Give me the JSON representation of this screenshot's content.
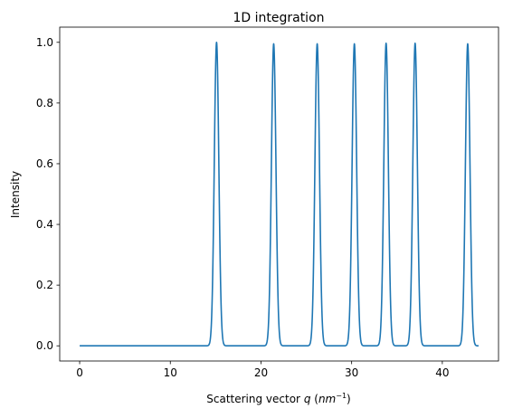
{
  "chart_data": {
    "type": "line",
    "title": "1D integration",
    "xlabel_prefix": "Scattering vector ",
    "xlabel_var": "q",
    "xlabel_unit_open": " (",
    "xlabel_unit_base": "nm",
    "xlabel_unit_exp": "−1",
    "xlabel_unit_close": ")",
    "ylabel": "Intensity",
    "xlim": [
      -2.2,
      46.2
    ],
    "ylim": [
      -0.05,
      1.05
    ],
    "xticks": [
      0,
      10,
      20,
      30,
      40
    ],
    "xtick_labels": [
      "0",
      "10",
      "20",
      "30",
      "40"
    ],
    "yticks": [
      0.0,
      0.2,
      0.4,
      0.6,
      0.8,
      1.0
    ],
    "ytick_labels": [
      "0.0",
      "0.2",
      "0.4",
      "0.6",
      "0.8",
      "1.0"
    ],
    "grid": false,
    "x_range": [
      0,
      44
    ],
    "peaks": [
      {
        "q": 15.1,
        "height": 1.0
      },
      {
        "q": 21.4,
        "height": 0.995
      },
      {
        "q": 26.2,
        "height": 0.995
      },
      {
        "q": 30.3,
        "height": 0.995
      },
      {
        "q": 33.8,
        "height": 0.997
      },
      {
        "q": 37.0,
        "height": 0.997
      },
      {
        "q": 42.8,
        "height": 0.995
      }
    ],
    "peak_width_sigma": 0.25,
    "series": [
      {
        "color": "#1f77b4"
      }
    ]
  }
}
